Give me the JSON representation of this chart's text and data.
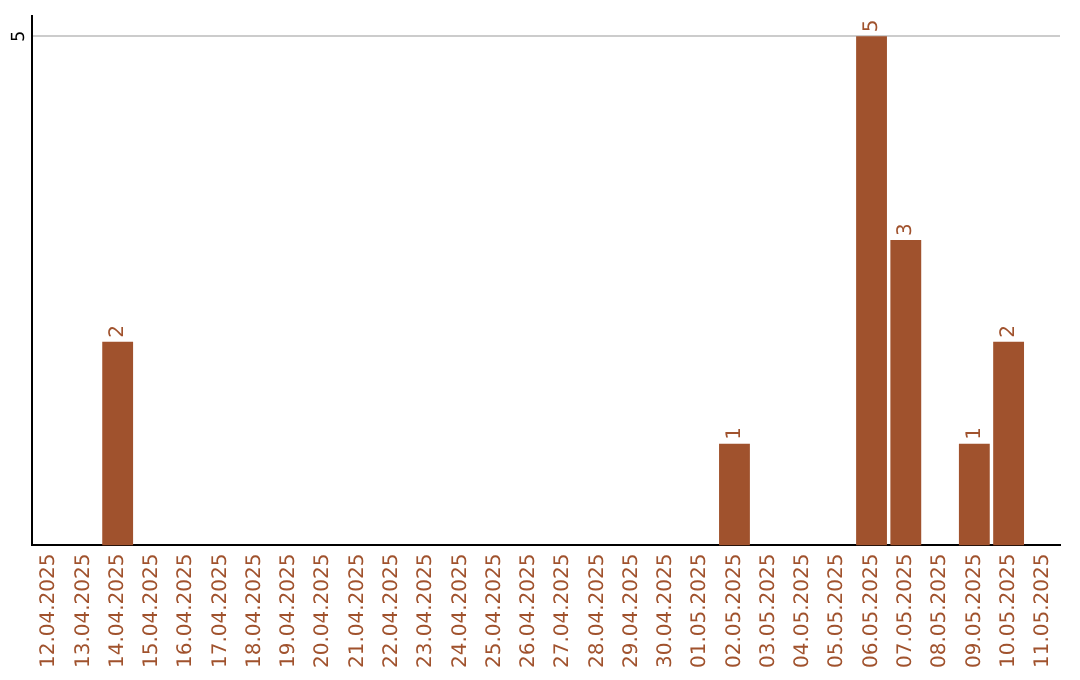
{
  "chart_data": {
    "type": "bar",
    "categories": [
      "12.04.2025",
      "13.04.2025",
      "14.04.2025",
      "15.04.2025",
      "16.04.2025",
      "17.04.2025",
      "18.04.2025",
      "19.04.2025",
      "20.04.2025",
      "21.04.2025",
      "22.04.2025",
      "23.04.2025",
      "24.04.2025",
      "25.04.2025",
      "26.04.2025",
      "27.04.2025",
      "28.04.2025",
      "29.04.2025",
      "30.04.2025",
      "01.05.2025",
      "02.05.2025",
      "03.05.2025",
      "04.05.2025",
      "05.05.2025",
      "06.05.2025",
      "07.05.2025",
      "08.05.2025",
      "09.05.2025",
      "10.05.2025",
      "11.05.2025"
    ],
    "values": [
      null,
      null,
      2,
      null,
      null,
      null,
      null,
      null,
      null,
      null,
      null,
      null,
      null,
      null,
      null,
      null,
      null,
      null,
      null,
      null,
      1,
      null,
      null,
      null,
      5,
      3,
      null,
      1,
      2,
      null
    ],
    "color": "#a0522d",
    "ylim": [
      0,
      5.2
    ],
    "yticks": [
      5
    ],
    "grid": "y",
    "data_labels": true
  }
}
